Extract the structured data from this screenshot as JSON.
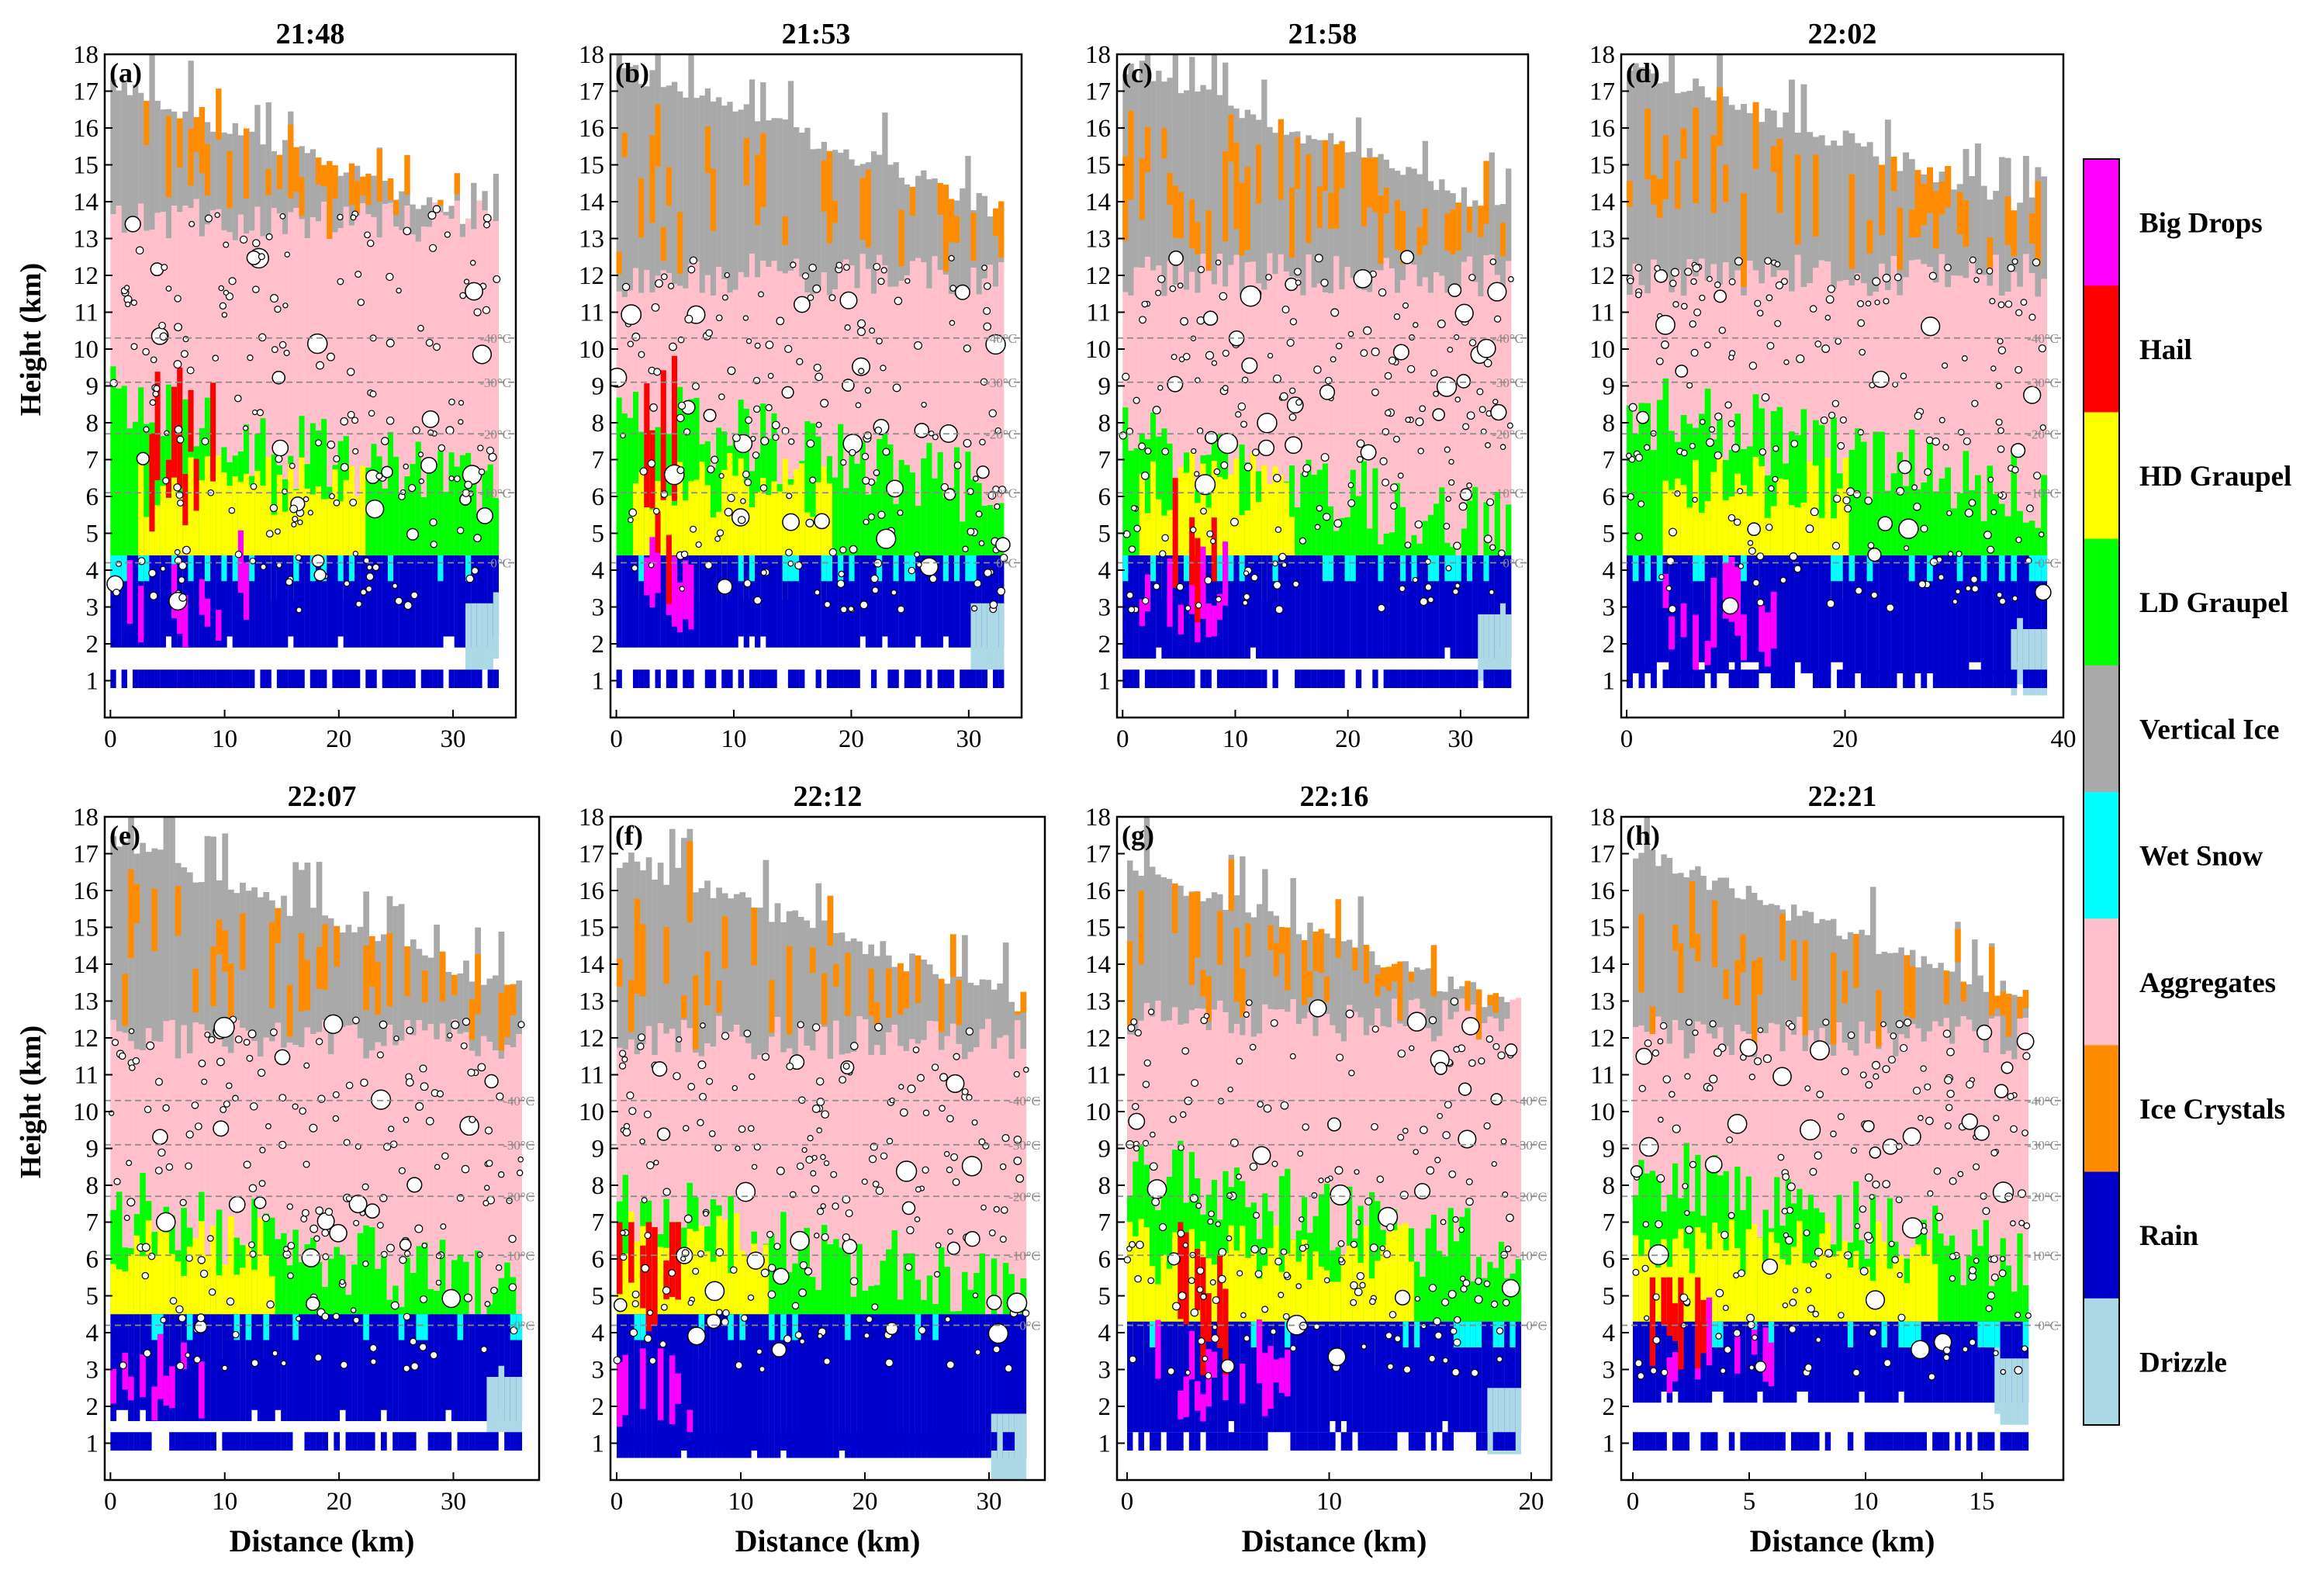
{
  "chart_data": {
    "type": "heatmap",
    "description_note": "",
    "y_axis_label": "Height (km)",
    "x_axis_label": "Distance (km)",
    "ylim": [
      0,
      18
    ],
    "y_ticks": [
      1,
      2,
      3,
      4,
      5,
      6,
      7,
      8,
      9,
      10,
      11,
      12,
      13,
      14,
      15,
      16,
      17,
      18
    ],
    "isotherms": [
      {
        "label": "0°C",
        "height_km": 4.2
      },
      {
        "label": "-10°C",
        "height_km": 6.1
      },
      {
        "label": "-20°C",
        "height_km": 7.7
      },
      {
        "label": "-30°C",
        "height_km": 9.1
      },
      {
        "label": "-40°C",
        "height_km": 10.3
      }
    ],
    "colorbar": {
      "classes": [
        {
          "label": "Big Drops",
          "color": "#ff00ff"
        },
        {
          "label": "Hail",
          "color": "#ff0000"
        },
        {
          "label": "HD Graupel",
          "color": "#ffff00"
        },
        {
          "label": "LD Graupel",
          "color": "#00ff00"
        },
        {
          "label": "Vertical Ice",
          "color": "#a9a9a9"
        },
        {
          "label": "Wet Snow",
          "color": "#00ffff"
        },
        {
          "label": "Aggregates",
          "color": "#ffc0cb"
        },
        {
          "label": "Ice Crystals",
          "color": "#ff8c00"
        },
        {
          "label": "Rain",
          "color": "#0000cd"
        },
        {
          "label": "Drizzle",
          "color": "#add8e6"
        }
      ]
    },
    "panels": [
      {
        "letter": "(a)",
        "time": "21:48",
        "xlim": [
          -0.5,
          35.5
        ],
        "x_ticks": [
          0,
          10,
          20,
          30
        ],
        "layers": {
          "rain_top": 4.4,
          "rain_bottom": 1.9,
          "graupel_top": 8.0,
          "aggregates_top": 13.5,
          "ice_top": 17.5
        },
        "features": {
          "hail_range_km": [
            3,
            9
          ],
          "hail_height_km": [
            5,
            9.5
          ],
          "hd_graupel_range_km": [
            2,
            22
          ],
          "big_drops_range_km": [
            1,
            12
          ]
        }
      },
      {
        "letter": "(b)",
        "time": "21:53",
        "xlim": [
          -0.5,
          34.5
        ],
        "x_ticks": [
          0,
          10,
          20,
          30
        ],
        "layers": {
          "rain_top": 4.4,
          "rain_bottom": 1.9,
          "graupel_top": 8.0,
          "aggregates_top": 12.0,
          "ice_top": 18.0
        },
        "features": {
          "hail_range_km": [
            2,
            6
          ],
          "hail_height_km": [
            3,
            11
          ],
          "hd_graupel_range_km": [
            1,
            18
          ],
          "big_drops_range_km": [
            1,
            8
          ]
        }
      },
      {
        "letter": "(c)",
        "time": "21:58",
        "xlim": [
          -0.5,
          36.0
        ],
        "x_ticks": [
          0,
          10,
          20,
          30
        ],
        "layers": {
          "rain_top": 4.4,
          "rain_bottom": 1.6,
          "graupel_top": 7.0,
          "aggregates_top": 12.0,
          "ice_top": 18.0
        },
        "features": {
          "hail_range_km": [
            4,
            8
          ],
          "hail_height_km": [
            1.5,
            9
          ],
          "hd_graupel_range_km": [
            1,
            15
          ],
          "big_drops_range_km": [
            1,
            9
          ]
        }
      },
      {
        "letter": "(d)",
        "time": "22:02",
        "xlim": [
          -0.5,
          40.0
        ],
        "x_ticks": [
          0,
          20,
          40
        ],
        "layers": {
          "rain_top": 4.4,
          "rain_bottom": 1.2,
          "graupel_top": 8.0,
          "aggregates_top": 12.0,
          "ice_top": 18.0
        },
        "features": {
          "hail_range_km": [],
          "hail_height_km": [],
          "hd_graupel_range_km": [
            3,
            20
          ],
          "big_drops_range_km": [
            3,
            14
          ]
        }
      },
      {
        "letter": "(e)",
        "time": "22:07",
        "xlim": [
          -0.5,
          37.5
        ],
        "x_ticks": [
          0,
          10,
          20,
          30
        ],
        "layers": {
          "rain_top": 4.5,
          "rain_bottom": 1.6,
          "graupel_top": 7.0,
          "aggregates_top": 12.0,
          "ice_top": 17.6
        },
        "features": {
          "hail_range_km": [],
          "hail_height_km": [],
          "hd_graupel_range_km": [
            0,
            14
          ],
          "big_drops_range_km": [
            0,
            8
          ]
        }
      },
      {
        "letter": "(f)",
        "time": "22:12",
        "xlim": [
          -0.5,
          34.5
        ],
        "x_ticks": [
          0,
          10,
          20,
          30
        ],
        "layers": {
          "rain_top": 4.5,
          "rain_bottom": 0.6,
          "graupel_top": 7.0,
          "aggregates_top": 12.0,
          "ice_top": 17.2
        },
        "features": {
          "hail_range_km": [
            0,
            5
          ],
          "hail_height_km": [
            4,
            7
          ],
          "hd_graupel_range_km": [
            0,
            12
          ],
          "big_drops_range_km": [
            0,
            6
          ]
        }
      },
      {
        "letter": "(g)",
        "time": "22:16",
        "xlim": [
          -0.5,
          21.0
        ],
        "x_ticks": [
          0,
          10,
          20
        ],
        "layers": {
          "rain_top": 4.3,
          "rain_bottom": 1.3,
          "graupel_top": 8.0,
          "aggregates_top": 12.5,
          "ice_top": 17.0
        },
        "features": {
          "hail_range_km": [
            2,
            5
          ],
          "hail_height_km": [
            2.5,
            7
          ],
          "hd_graupel_range_km": [
            0,
            14
          ],
          "big_drops_range_km": [
            1,
            8
          ]
        }
      },
      {
        "letter": "(h)",
        "time": "22:21",
        "xlim": [
          -0.5,
          18.5
        ],
        "x_ticks": [
          0,
          5,
          10,
          15
        ],
        "layers": {
          "rain_top": 4.3,
          "rain_bottom": 2.1,
          "graupel_top": 8.0,
          "aggregates_top": 12.0,
          "ice_top": 17.3
        },
        "features": {
          "hail_range_km": [
            0.5,
            3
          ],
          "hail_height_km": [
            3,
            5.5
          ],
          "hd_graupel_range_km": [
            0,
            13
          ],
          "big_drops_range_km": [
            1,
            6
          ]
        }
      }
    ]
  }
}
